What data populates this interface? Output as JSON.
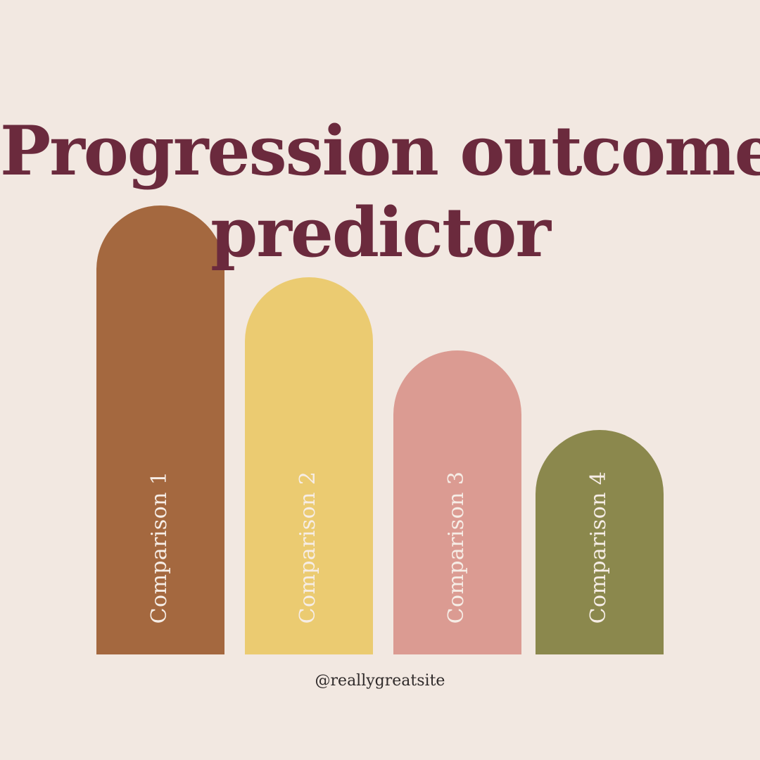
{
  "page": {
    "title_line1": "Progression outcome",
    "title_line2": "predictor",
    "handle": "@reallygreatsite",
    "background_color": "#f2e8e1",
    "title_color": "#6b2a3d"
  },
  "chart_data": {
    "type": "bar",
    "title": "Progression outcome predictor",
    "categories": [
      "Comparison 1",
      "Comparison 2",
      "Comparison 3",
      "Comparison 4"
    ],
    "values": [
      638,
      536,
      432,
      319
    ],
    "colors": [
      "#a4683f",
      "#ebcb71",
      "#db9b92",
      "#8b884d"
    ],
    "ylim": [
      0,
      638
    ],
    "grid": false
  }
}
